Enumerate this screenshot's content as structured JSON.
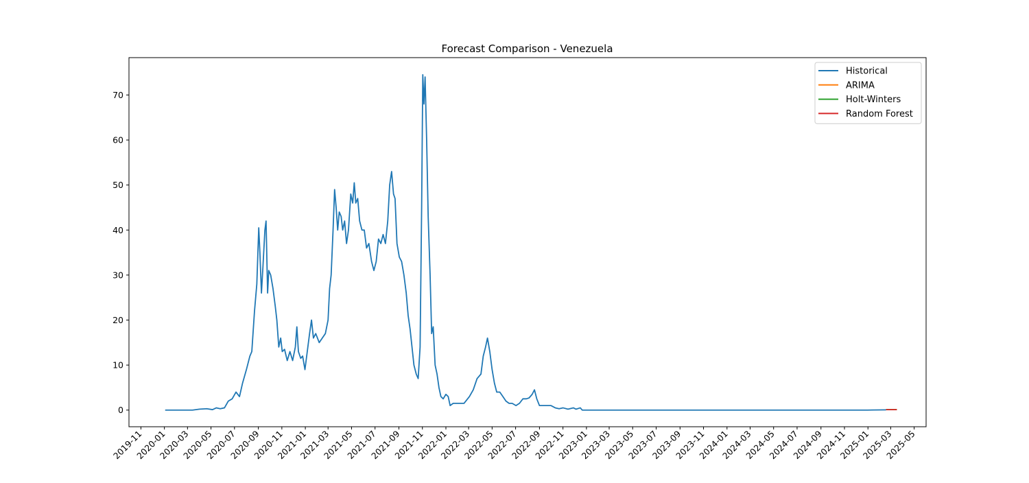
{
  "chart_data": {
    "type": "line",
    "title": "Forecast Comparison - Venezuela",
    "xlabel": "",
    "ylabel": "",
    "x_axis_type": "date",
    "xlim": [
      "2019-10-01",
      "2025-06-01"
    ],
    "ylim": [
      -3.7,
      78.3
    ],
    "x_ticks": [
      "2019-11",
      "2020-01",
      "2020-03",
      "2020-05",
      "2020-07",
      "2020-09",
      "2020-11",
      "2021-01",
      "2021-03",
      "2021-05",
      "2021-07",
      "2021-09",
      "2021-11",
      "2022-01",
      "2022-03",
      "2022-05",
      "2022-07",
      "2022-09",
      "2022-11",
      "2023-01",
      "2023-03",
      "2023-05",
      "2023-07",
      "2023-09",
      "2023-11",
      "2024-01",
      "2024-03",
      "2024-05",
      "2024-07",
      "2024-09",
      "2024-11",
      "2025-01",
      "2025-03",
      "2025-05"
    ],
    "y_ticks": [
      0,
      10,
      20,
      30,
      40,
      50,
      60,
      70
    ],
    "grid": false,
    "legend_position": "top-right",
    "series": [
      {
        "name": "Historical",
        "color": "#1f77b4",
        "points": [
          [
            "2020-01-03",
            0
          ],
          [
            "2020-03-14",
            0
          ],
          [
            "2020-04-01",
            0.2
          ],
          [
            "2020-04-20",
            0.3
          ],
          [
            "2020-05-05",
            0.1
          ],
          [
            "2020-05-15",
            0.5
          ],
          [
            "2020-05-25",
            0.3
          ],
          [
            "2020-06-05",
            0.5
          ],
          [
            "2020-06-15",
            2.0
          ],
          [
            "2020-06-25",
            2.5
          ],
          [
            "2020-07-05",
            4.0
          ],
          [
            "2020-07-14",
            3.0
          ],
          [
            "2020-07-22",
            6.0
          ],
          [
            "2020-08-01",
            9.0
          ],
          [
            "2020-08-10",
            12.0
          ],
          [
            "2020-08-15",
            13.0
          ],
          [
            "2020-08-22",
            22.0
          ],
          [
            "2020-08-28",
            28.0
          ],
          [
            "2020-09-02",
            40.5
          ],
          [
            "2020-09-05",
            35.0
          ],
          [
            "2020-09-09",
            26.0
          ],
          [
            "2020-09-13",
            32.0
          ],
          [
            "2020-09-18",
            40.0
          ],
          [
            "2020-09-21",
            42.0
          ],
          [
            "2020-09-25",
            26.0
          ],
          [
            "2020-09-28",
            31.0
          ],
          [
            "2020-10-03",
            30.0
          ],
          [
            "2020-10-09",
            27.0
          ],
          [
            "2020-10-15",
            23.0
          ],
          [
            "2020-10-19",
            20.0
          ],
          [
            "2020-10-24",
            14.0
          ],
          [
            "2020-10-29",
            16.0
          ],
          [
            "2020-11-02",
            13.0
          ],
          [
            "2020-11-08",
            13.5
          ],
          [
            "2020-11-15",
            11.0
          ],
          [
            "2020-11-22",
            13.0
          ],
          [
            "2020-11-29",
            11.0
          ],
          [
            "2020-12-06",
            14.0
          ],
          [
            "2020-12-10",
            18.5
          ],
          [
            "2020-12-14",
            13.0
          ],
          [
            "2020-12-20",
            11.5
          ],
          [
            "2020-12-25",
            12.0
          ],
          [
            "2020-12-31",
            9.0
          ],
          [
            "2021-01-06",
            13.0
          ],
          [
            "2021-01-12",
            17.0
          ],
          [
            "2021-01-17",
            20.0
          ],
          [
            "2021-01-22",
            16.0
          ],
          [
            "2021-01-28",
            17.0
          ],
          [
            "2021-02-06",
            15.0
          ],
          [
            "2021-02-14",
            16.0
          ],
          [
            "2021-02-22",
            17.0
          ],
          [
            "2021-03-01",
            20.0
          ],
          [
            "2021-03-05",
            27.0
          ],
          [
            "2021-03-09",
            30.0
          ],
          [
            "2021-03-14",
            40.0
          ],
          [
            "2021-03-18",
            49.0
          ],
          [
            "2021-03-22",
            45.0
          ],
          [
            "2021-03-26",
            40.0
          ],
          [
            "2021-03-30",
            44.0
          ],
          [
            "2021-04-04",
            43.0
          ],
          [
            "2021-04-08",
            40.0
          ],
          [
            "2021-04-13",
            42.0
          ],
          [
            "2021-04-18",
            37.0
          ],
          [
            "2021-04-23",
            40.0
          ],
          [
            "2021-04-29",
            48.0
          ],
          [
            "2021-05-04",
            46.0
          ],
          [
            "2021-05-08",
            50.5
          ],
          [
            "2021-05-12",
            46.0
          ],
          [
            "2021-05-17",
            47.0
          ],
          [
            "2021-05-22",
            42.0
          ],
          [
            "2021-05-28",
            40.0
          ],
          [
            "2021-06-03",
            40.0
          ],
          [
            "2021-06-09",
            36.0
          ],
          [
            "2021-06-15",
            37.0
          ],
          [
            "2021-06-22",
            33.0
          ],
          [
            "2021-06-28",
            31.0
          ],
          [
            "2021-07-04",
            33.0
          ],
          [
            "2021-07-10",
            38.0
          ],
          [
            "2021-07-16",
            37.0
          ],
          [
            "2021-07-22",
            39.0
          ],
          [
            "2021-07-28",
            37.0
          ],
          [
            "2021-08-03",
            42.0
          ],
          [
            "2021-08-08",
            50.0
          ],
          [
            "2021-08-13",
            53.0
          ],
          [
            "2021-08-18",
            48.0
          ],
          [
            "2021-08-22",
            47.0
          ],
          [
            "2021-08-27",
            37.0
          ],
          [
            "2021-09-02",
            34.0
          ],
          [
            "2021-09-08",
            33.0
          ],
          [
            "2021-09-14",
            30.0
          ],
          [
            "2021-09-20",
            26.0
          ],
          [
            "2021-09-25",
            21.0
          ],
          [
            "2021-09-30",
            18.0
          ],
          [
            "2021-10-05",
            14.0
          ],
          [
            "2021-10-10",
            10.0
          ],
          [
            "2021-10-16",
            8.0
          ],
          [
            "2021-10-21",
            7.0
          ],
          [
            "2021-10-26",
            14.0
          ],
          [
            "2021-10-30",
            45.0
          ],
          [
            "2021-11-02",
            74.5
          ],
          [
            "2021-11-05",
            68.0
          ],
          [
            "2021-11-08",
            74.0
          ],
          [
            "2021-11-12",
            60.0
          ],
          [
            "2021-11-16",
            43.0
          ],
          [
            "2021-11-21",
            30.0
          ],
          [
            "2021-11-25",
            17.0
          ],
          [
            "2021-11-29",
            18.5
          ],
          [
            "2021-12-04",
            10.0
          ],
          [
            "2021-12-09",
            8.0
          ],
          [
            "2021-12-14",
            5.0
          ],
          [
            "2021-12-19",
            3.0
          ],
          [
            "2021-12-25",
            2.5
          ],
          [
            "2022-01-01",
            3.5
          ],
          [
            "2022-01-07",
            3.0
          ],
          [
            "2022-01-12",
            1.0
          ],
          [
            "2022-01-20",
            1.5
          ],
          [
            "2022-02-03",
            1.5
          ],
          [
            "2022-02-17",
            1.5
          ],
          [
            "2022-03-03",
            3.0
          ],
          [
            "2022-03-13",
            4.5
          ],
          [
            "2022-03-23",
            7.0
          ],
          [
            "2022-04-02",
            8.0
          ],
          [
            "2022-04-08",
            12.0
          ],
          [
            "2022-04-14",
            14.0
          ],
          [
            "2022-04-19",
            16.0
          ],
          [
            "2022-04-25",
            13.0
          ],
          [
            "2022-05-01",
            9.0
          ],
          [
            "2022-05-07",
            6.0
          ],
          [
            "2022-05-13",
            4.0
          ],
          [
            "2022-05-21",
            4.0
          ],
          [
            "2022-05-29",
            3.0
          ],
          [
            "2022-06-06",
            2.0
          ],
          [
            "2022-06-14",
            1.5
          ],
          [
            "2022-06-22",
            1.5
          ],
          [
            "2022-07-02",
            1.0
          ],
          [
            "2022-07-11",
            1.5
          ],
          [
            "2022-07-20",
            2.5
          ],
          [
            "2022-07-29",
            2.5
          ],
          [
            "2022-08-05",
            2.7
          ],
          [
            "2022-08-13",
            3.5
          ],
          [
            "2022-08-19",
            4.5
          ],
          [
            "2022-08-25",
            2.5
          ],
          [
            "2022-09-01",
            1.0
          ],
          [
            "2022-09-11",
            1.0
          ],
          [
            "2022-09-21",
            1.0
          ],
          [
            "2022-10-01",
            1.0
          ],
          [
            "2022-10-12",
            0.5
          ],
          [
            "2022-10-22",
            0.3
          ],
          [
            "2022-11-01",
            0.5
          ],
          [
            "2022-11-14",
            0.2
          ],
          [
            "2022-11-28",
            0.5
          ],
          [
            "2022-12-05",
            0.2
          ],
          [
            "2022-12-16",
            0.5
          ],
          [
            "2022-12-21",
            0
          ],
          [
            "2023-04-01",
            0
          ],
          [
            "2024-01-01",
            0
          ],
          [
            "2024-06-01",
            0
          ],
          [
            "2024-12-31",
            0
          ],
          [
            "2025-02-17",
            0.05
          ]
        ]
      },
      {
        "name": "ARIMA",
        "color": "#ff7f0e",
        "points": [
          [
            "2025-02-17",
            0.1
          ],
          [
            "2025-03-17",
            0.1
          ]
        ]
      },
      {
        "name": "Holt-Winters",
        "color": "#2ca02c",
        "points": [
          [
            "2025-02-17",
            0.1
          ],
          [
            "2025-03-17",
            0.1
          ]
        ]
      },
      {
        "name": "Random Forest",
        "color": "#d62728",
        "points": [
          [
            "2025-02-17",
            0.1
          ],
          [
            "2025-03-17",
            0.1
          ]
        ]
      }
    ]
  }
}
